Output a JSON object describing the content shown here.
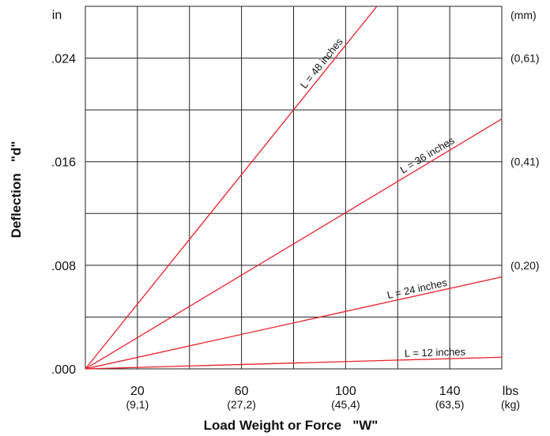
{
  "chart_data": {
    "type": "line",
    "xlabel": "Load Weight or Force   \"W\"",
    "ylabel": "Deflection   \"d\"",
    "x_unit_primary": "lbs",
    "x_unit_secondary": "(kg)",
    "y_unit_primary": "in",
    "y_unit_secondary": "(mm)",
    "xlim": [
      0,
      160
    ],
    "ylim": [
      0,
      0.028
    ],
    "grid": true,
    "x_ticks": [
      {
        "value": 20,
        "label": "20",
        "sub": "(9,1)"
      },
      {
        "value": 60,
        "label": "60",
        "sub": "(27,2)"
      },
      {
        "value": 100,
        "label": "100",
        "sub": "(45,4)"
      },
      {
        "value": 140,
        "label": "140",
        "sub": "(63,5)"
      }
    ],
    "y_ticks": [
      {
        "value": 0,
        "label": ".000"
      },
      {
        "value": 0.008,
        "label": ".008"
      },
      {
        "value": 0.016,
        "label": ".016"
      },
      {
        "value": 0.024,
        "label": ".024"
      }
    ],
    "y_ticks_secondary": [
      {
        "value": 0.008,
        "label": "(0,20)"
      },
      {
        "value": 0.016,
        "label": "(0,41)"
      },
      {
        "value": 0.024,
        "label": "(0,61)"
      }
    ],
    "line_color": "#e8202a",
    "series": [
      {
        "name": "L = 12 inches",
        "x": [
          0,
          160
        ],
        "y": [
          0,
          0.0009
        ]
      },
      {
        "name": "L = 24 inches",
        "x": [
          0,
          160
        ],
        "y": [
          0,
          0.0071
        ]
      },
      {
        "name": "L = 36 inches",
        "x": [
          0,
          160
        ],
        "y": [
          0,
          0.0193
        ]
      },
      {
        "name": "L = 48 inches",
        "x": [
          0,
          112
        ],
        "y": [
          0,
          0.028
        ]
      }
    ]
  }
}
